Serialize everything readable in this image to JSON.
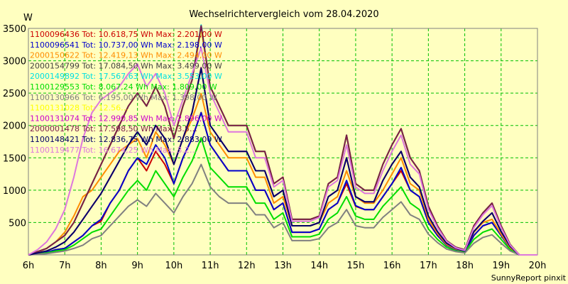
{
  "chart_data": {
    "type": "line",
    "title": "Wechselrichtervergleich vom 28.04.2020",
    "unit_label": "W",
    "footer": "SunnyReport pinxit",
    "ylim": [
      0,
      3500
    ],
    "xlim": [
      6,
      20
    ],
    "grid": true,
    "legend_placement": "top-left",
    "y_ticks": [
      500,
      1000,
      1500,
      2000,
      2500,
      3000,
      3500
    ],
    "y_tick_labels": [
      "500",
      "1000",
      "1500",
      "2000",
      "2500",
      "3000",
      "3500"
    ],
    "x_ticks": [
      6,
      7,
      8,
      9,
      10,
      11,
      12,
      13,
      14,
      15,
      16,
      17,
      18,
      19,
      20
    ],
    "x_tick_labels": [
      "6h",
      "7h",
      "8h",
      "9h",
      "10h",
      "11h",
      "12h",
      "13h",
      "14h",
      "15h",
      "16h",
      "17h",
      "18h",
      "19h",
      "20h"
    ],
    "x": [
      6.0,
      6.25,
      6.5,
      6.75,
      7.0,
      7.25,
      7.5,
      7.75,
      8.0,
      8.25,
      8.5,
      8.75,
      9.0,
      9.25,
      9.5,
      9.75,
      10.0,
      10.25,
      10.5,
      10.75,
      11.0,
      11.25,
      11.5,
      11.75,
      12.0,
      12.25,
      12.5,
      12.75,
      13.0,
      13.25,
      13.5,
      13.75,
      14.0,
      14.25,
      14.5,
      14.75,
      15.0,
      15.25,
      15.5,
      15.75,
      16.0,
      16.25,
      16.5,
      16.75,
      17.0,
      17.25,
      17.5,
      17.75,
      18.0,
      18.25,
      18.5,
      18.75,
      19.0,
      19.25,
      19.5,
      19.75,
      20.0
    ],
    "series": [
      {
        "name": "1100096436 Tot: 10.618,75 Wh Max: 2.201,00 W",
        "color": "#cc0000",
        "values": [
          0,
          20,
          40,
          80,
          100,
          200,
          300,
          450,
          520,
          800,
          1000,
          1300,
          1500,
          1300,
          1600,
          1400,
          1100,
          1500,
          1800,
          2200,
          1700,
          1500,
          1300,
          1300,
          1300,
          1000,
          1000,
          700,
          800,
          350,
          350,
          350,
          400,
          700,
          800,
          1100,
          750,
          700,
          700,
          900,
          1100,
          1300,
          1000,
          900,
          500,
          300,
          150,
          80,
          50,
          300,
          450,
          500,
          300,
          100,
          0,
          0,
          0
        ]
      },
      {
        "name": "1100096541 Tot: 10.737,00 Wh Max: 2.198,00 W",
        "color": "#0000cc",
        "values": [
          0,
          20,
          40,
          80,
          100,
          200,
          300,
          450,
          550,
          800,
          1000,
          1300,
          1500,
          1400,
          1700,
          1500,
          1100,
          1500,
          1800,
          2198,
          1700,
          1500,
          1300,
          1300,
          1300,
          1000,
          1000,
          700,
          800,
          350,
          350,
          350,
          400,
          700,
          800,
          1150,
          760,
          700,
          700,
          900,
          1100,
          1350,
          1000,
          900,
          500,
          300,
          150,
          80,
          50,
          300,
          450,
          500,
          300,
          100,
          0,
          0,
          0
        ]
      },
      {
        "name": "2000150622 Tot: 12.419,13 Wh Max: 2.494,00 W",
        "color": "#ff8c00",
        "values": [
          0,
          40,
          100,
          200,
          350,
          600,
          900,
          1000,
          1200,
          1400,
          1600,
          1700,
          1800,
          1500,
          1900,
          1700,
          1400,
          1800,
          2100,
          2494,
          1900,
          1700,
          1500,
          1500,
          1500,
          1200,
          1200,
          800,
          900,
          450,
          450,
          450,
          500,
          800,
          900,
          1300,
          900,
          800,
          800,
          1000,
          1250,
          1500,
          1100,
          1000,
          550,
          330,
          160,
          90,
          60,
          350,
          500,
          550,
          320,
          110,
          0,
          0,
          0
        ]
      },
      {
        "name": "2000154799 Tot: 17.084,50 Wh Max: 3.499,00 W",
        "color": "#404040",
        "values": [
          0,
          50,
          100,
          200,
          300,
          500,
          800,
          1100,
          1400,
          1700,
          2000,
          2300,
          2500,
          2300,
          2600,
          2300,
          1800,
          2300,
          2700,
          3499,
          2600,
          2300,
          2000,
          2000,
          2000,
          1600,
          1600,
          1100,
          1200,
          550,
          550,
          550,
          600,
          1100,
          1200,
          1850,
          1100,
          1000,
          1000,
          1400,
          1700,
          1950,
          1500,
          1300,
          750,
          450,
          220,
          120,
          80,
          450,
          650,
          800,
          450,
          160,
          0,
          0,
          0
        ]
      },
      {
        "name": "2000149892 Tot: 17.567,63 Wh Max: 3.553,00 W",
        "color": "#00e0e0",
        "values": [
          0,
          50,
          100,
          200,
          300,
          500,
          800,
          1100,
          1400,
          1700,
          2000,
          2300,
          2500,
          2300,
          2600,
          2300,
          1800,
          2300,
          2700,
          3553,
          2600,
          2300,
          2000,
          2000,
          2000,
          1600,
          1600,
          1100,
          1200,
          550,
          550,
          550,
          600,
          1100,
          1200,
          1850,
          1100,
          1000,
          1000,
          1400,
          1700,
          1950,
          1500,
          1300,
          750,
          450,
          220,
          120,
          80,
          450,
          650,
          800,
          450,
          160,
          0,
          0,
          0
        ]
      },
      {
        "name": "1100129553 Tot: 8.067,24 Wh Max: 1.809,00 W",
        "color": "#00dd00",
        "values": [
          0,
          15,
          30,
          60,
          80,
          150,
          250,
          350,
          400,
          600,
          800,
          1000,
          1150,
          1000,
          1300,
          1100,
          900,
          1200,
          1450,
          1809,
          1350,
          1200,
          1050,
          1050,
          1050,
          800,
          800,
          550,
          650,
          280,
          280,
          280,
          320,
          550,
          650,
          900,
          600,
          550,
          550,
          750,
          900,
          1050,
          800,
          700,
          400,
          240,
          120,
          60,
          40,
          240,
          350,
          400,
          240,
          80,
          0,
          0,
          0
        ]
      },
      {
        "name": "1100130966 Tot: 6.195,00 Wh Max: 1.398,00 W",
        "color": "#808080",
        "values": [
          0,
          10,
          20,
          40,
          60,
          100,
          150,
          250,
          300,
          450,
          600,
          750,
          850,
          750,
          950,
          800,
          650,
          900,
          1100,
          1398,
          1050,
          900,
          800,
          800,
          800,
          620,
          620,
          420,
          500,
          220,
          220,
          220,
          250,
          420,
          500,
          700,
          450,
          420,
          420,
          580,
          700,
          820,
          620,
          550,
          320,
          190,
          90,
          50,
          30,
          180,
          270,
          310,
          180,
          60,
          0,
          0,
          0
        ]
      },
      {
        "name": "1100131028 Tot: 12.56…",
        "color": "#ffff00",
        "values": [
          0,
          50,
          100,
          200,
          300,
          500,
          800,
          1100,
          1400,
          1700,
          2000,
          2300,
          2500,
          2300,
          2600,
          2300,
          1800,
          2300,
          2700,
          3499,
          2600,
          2300,
          2000,
          2000,
          2000,
          1600,
          1600,
          1100,
          1200,
          550,
          550,
          550,
          600,
          1100,
          1200,
          1850,
          1100,
          1000,
          1000,
          1400,
          1700,
          1950,
          1500,
          1300,
          750,
          450,
          220,
          120,
          80,
          450,
          650,
          800,
          450,
          160,
          0,
          0,
          0
        ]
      },
      {
        "name": "1100131074 Tot: 12.990,85 Wh Max: 2.896,00 W",
        "color": "#cc00cc",
        "values": [
          0,
          30,
          60,
          120,
          200,
          350,
          550,
          750,
          950,
          1200,
          1450,
          1700,
          1900,
          1700,
          2000,
          1800,
          1400,
          1800,
          2200,
          2896,
          2000,
          1800,
          1600,
          1600,
          1600,
          1300,
          1300,
          900,
          1000,
          450,
          450,
          450,
          500,
          900,
          1000,
          1500,
          900,
          820,
          820,
          1150,
          1400,
          1600,
          1200,
          1050,
          600,
          360,
          180,
          100,
          60,
          360,
          520,
          650,
          360,
          130,
          0,
          0,
          0
        ]
      },
      {
        "name": "2000001478 Tot: 17.598,50 Wh Max: 3.5…",
        "color": "#7a1a4a",
        "values": [
          0,
          50,
          100,
          200,
          300,
          500,
          800,
          1100,
          1400,
          1700,
          2000,
          2300,
          2500,
          2300,
          2600,
          2300,
          1800,
          2300,
          2700,
          3540,
          2600,
          2300,
          2000,
          2000,
          2000,
          1600,
          1600,
          1100,
          1200,
          550,
          550,
          550,
          600,
          1100,
          1200,
          1850,
          1100,
          1000,
          1000,
          1400,
          1700,
          1950,
          1500,
          1300,
          750,
          450,
          220,
          120,
          80,
          450,
          650,
          800,
          450,
          160,
          0,
          0,
          0
        ]
      },
      {
        "name": "1100148421 Tot: 12.836,75 Wh Max: 2.883,00 W",
        "color": "#000066",
        "values": [
          0,
          30,
          60,
          120,
          200,
          350,
          550,
          750,
          950,
          1200,
          1450,
          1700,
          1900,
          1700,
          2000,
          1800,
          1400,
          1800,
          2200,
          2883,
          2000,
          1800,
          1600,
          1600,
          1600,
          1300,
          1300,
          900,
          1000,
          450,
          450,
          450,
          500,
          900,
          1000,
          1500,
          900,
          820,
          820,
          1150,
          1400,
          1600,
          1200,
          1050,
          600,
          360,
          180,
          100,
          60,
          360,
          520,
          650,
          360,
          130,
          0,
          0,
          0
        ]
      },
      {
        "name": "1100119477 Tot: 16.674,25 Wh Max: 3.2…",
        "color": "#dd77dd",
        "values": [
          0,
          80,
          200,
          400,
          700,
          1200,
          1800,
          2200,
          2400,
          2500,
          2600,
          2800,
          2950,
          2600,
          2800,
          2500,
          2000,
          2400,
          2800,
          3200,
          2500,
          2200,
          1900,
          1900,
          1900,
          1500,
          1500,
          1050,
          1150,
          520,
          520,
          520,
          580,
          1050,
          1150,
          1700,
          1050,
          950,
          950,
          1300,
          1600,
          1850,
          1400,
          1250,
          700,
          420,
          210,
          110,
          70,
          420,
          620,
          760,
          420,
          150,
          0,
          0,
          0
        ]
      }
    ]
  }
}
